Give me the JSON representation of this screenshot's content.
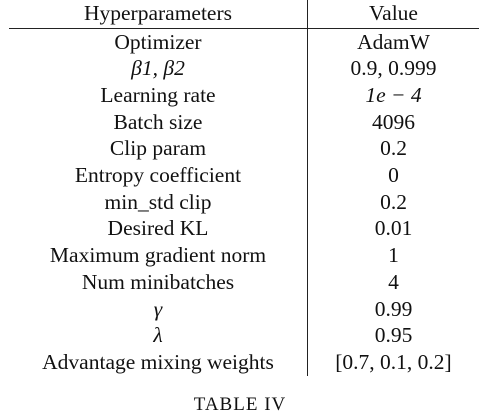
{
  "table": {
    "header": {
      "param": "Hyperparameters",
      "value": "Value"
    },
    "rows": [
      {
        "param": "Optimizer",
        "value": "AdamW"
      },
      {
        "param": "β1, β2",
        "value": "0.9, 0.999"
      },
      {
        "param": "Learning rate",
        "value": "1e − 4"
      },
      {
        "param": "Batch size",
        "value": "4096"
      },
      {
        "param": "Clip param",
        "value": "0.2"
      },
      {
        "param": "Entropy coefficient",
        "value": "0"
      },
      {
        "param": "min_std clip",
        "value": "0.2"
      },
      {
        "param": "Desired KL",
        "value": "0.01"
      },
      {
        "param": "Maximum gradient norm",
        "value": "1"
      },
      {
        "param": "Num minibatches",
        "value": "4"
      },
      {
        "param": "γ",
        "value": "0.99"
      },
      {
        "param": "λ",
        "value": "0.95"
      },
      {
        "param": "Advantage mixing weights",
        "value": "[0.7, 0.1, 0.2]"
      }
    ]
  },
  "caption": "TABLE IV"
}
